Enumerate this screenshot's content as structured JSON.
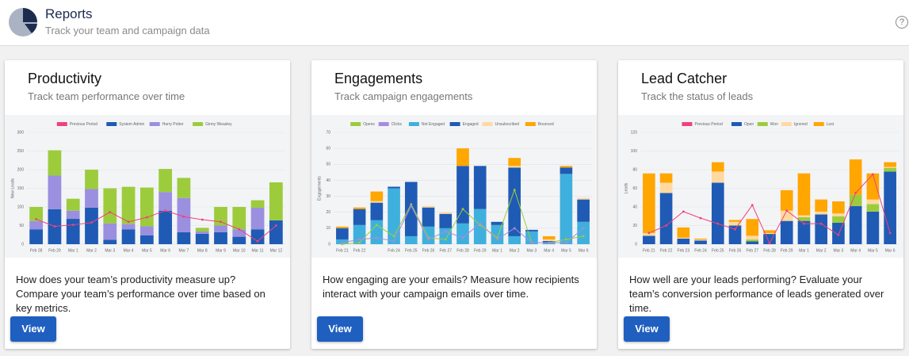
{
  "header": {
    "title": "Reports",
    "subtitle": "Track your team and campaign data",
    "help": "?"
  },
  "cards": [
    {
      "title": "Productivity",
      "subtitle": "Track team performance over time",
      "description": "How does your team’s productivity measure up? Compare your team’s performance over time based on key metrics.",
      "button": "View"
    },
    {
      "title": "Engagements",
      "subtitle": "Track campaign engagements",
      "description": "How engaging are your emails? Measure how recipients interact with your campaign emails over time.",
      "button": "View"
    },
    {
      "title": "Lead Catcher",
      "subtitle": "Track the status of leads",
      "description": "How well are your leads performing? Evaluate your team’s conversion performance of leads generated over time.",
      "button": "View"
    }
  ],
  "chart_data": [
    {
      "type": "bar",
      "stacked": true,
      "ylabel": "New Leads",
      "ylim": [
        0,
        300
      ],
      "yticks": [
        0,
        50,
        100,
        150,
        200,
        250,
        300
      ],
      "grid": true,
      "categories": [
        "Feb 28",
        "Feb 29",
        "Mar 1",
        "Mar 2",
        "Mar 3",
        "Mar 4",
        "Mar 5",
        "Mar 6",
        "Mar 7",
        "Mar 8",
        "Mar 9",
        "Mar 10",
        "Mar 11",
        "Mar 12"
      ],
      "series": [
        {
          "name": "Previous Period",
          "type": "line",
          "color": "#f0427a",
          "values": [
            67,
            48,
            52,
            58,
            86,
            60,
            72,
            90,
            74,
            66,
            60,
            40,
            8,
            50
          ]
        },
        {
          "name": "System Admin",
          "color": "#1f5bb5",
          "values": [
            40,
            94,
            68,
            98,
            12,
            40,
            24,
            90,
            32,
            28,
            32,
            20,
            40,
            64
          ]
        },
        {
          "name": "Harry Potter",
          "color": "#9b8fe0",
          "values": [
            22,
            90,
            22,
            50,
            44,
            14,
            24,
            50,
            92,
            6,
            18,
            20,
            58,
            0
          ]
        },
        {
          "name": "Ginny Weasley",
          "color": "#9ccc3c",
          "values": [
            38,
            68,
            32,
            52,
            94,
            100,
            104,
            62,
            54,
            10,
            50,
            60,
            20,
            102
          ]
        }
      ]
    },
    {
      "type": "bar",
      "stacked": true,
      "ylabel": "Engagements",
      "ylim": [
        0,
        70
      ],
      "yticks": [
        0,
        10,
        20,
        30,
        40,
        50,
        60,
        70
      ],
      "grid": true,
      "categories": [
        "Feb 21",
        "Feb 22",
        null,
        "Feb 24",
        "Feb 25",
        "Feb 26",
        "Feb 27",
        "Feb 28",
        "Feb 29",
        "Mar 1",
        "Mar 2",
        "Mar 3",
        "Mar 4",
        "Mar 5",
        "Mar 6"
      ],
      "series": [
        {
          "name": "Opens",
          "type": "line",
          "color": "#9ccc3c",
          "values": [
            0,
            1,
            12,
            5,
            25,
            4,
            3,
            22,
            12,
            4,
            34,
            1,
            1,
            3,
            5
          ]
        },
        {
          "name": "Clicks",
          "type": "line",
          "color": "#a78be0",
          "values": [
            1,
            3,
            4,
            2,
            24,
            3,
            8,
            4,
            13,
            3,
            10,
            1,
            1,
            1,
            10
          ]
        },
        {
          "name": "Not Engaged",
          "color": "#3fb0de",
          "values": [
            3,
            12,
            15,
            35,
            5,
            11,
            10,
            13,
            22,
            12,
            5,
            8,
            1,
            44,
            14
          ]
        },
        {
          "name": "Engaged",
          "color": "#1f5bb5",
          "values": [
            7,
            10,
            11,
            1,
            34,
            12,
            9,
            36,
            27,
            2,
            43,
            1,
            1,
            4,
            14
          ]
        },
        {
          "name": "Unsubscribed",
          "color": "#ffd9a0",
          "values": [
            0,
            0,
            1,
            0,
            0,
            1,
            1,
            0,
            0,
            0,
            1,
            0,
            1,
            0,
            1
          ]
        },
        {
          "name": "Bounced",
          "color": "#ffa600",
          "values": [
            1,
            1,
            6,
            0,
            0,
            0,
            0,
            11,
            0,
            0,
            5,
            0,
            2,
            1,
            0
          ]
        }
      ]
    },
    {
      "type": "bar",
      "stacked": true,
      "ylabel": "Leads",
      "ylim": [
        0,
        120
      ],
      "yticks": [
        0,
        20,
        40,
        60,
        80,
        100,
        120
      ],
      "grid": true,
      "categories": [
        "Feb 21",
        "Feb 22",
        "Feb 23",
        "Feb 24",
        "Feb 25",
        "Feb 26",
        "Feb 27",
        "Feb 28",
        "Feb 29",
        "Mar 1",
        "Mar 2",
        "Mar 3",
        "Mar 4",
        "Mar 5",
        "Mar 6"
      ],
      "series": [
        {
          "name": "Previous Period",
          "type": "line",
          "color": "#f0427a",
          "values": [
            12,
            20,
            35,
            28,
            22,
            16,
            42,
            1,
            36,
            22,
            22,
            10,
            55,
            75,
            12
          ]
        },
        {
          "name": "Open",
          "color": "#1f5bb5",
          "values": [
            9,
            55,
            6,
            4,
            66,
            20,
            3,
            11,
            25,
            25,
            32,
            23,
            41,
            35,
            78
          ]
        },
        {
          "name": "Won",
          "color": "#9ccc3c",
          "values": [
            0,
            0,
            0,
            0,
            0,
            0,
            2,
            0,
            0,
            4,
            0,
            7,
            12,
            8,
            4
          ]
        },
        {
          "name": "Ignored",
          "color": "#ffd9a0",
          "values": [
            3,
            11,
            1,
            1,
            12,
            4,
            4,
            1,
            11,
            2,
            3,
            3,
            0,
            5,
            1
          ]
        },
        {
          "name": "Lost",
          "color": "#ffa600",
          "values": [
            64,
            10,
            11,
            1,
            10,
            2,
            18,
            3,
            22,
            45,
            13,
            13,
            38,
            28,
            5
          ]
        }
      ]
    }
  ]
}
